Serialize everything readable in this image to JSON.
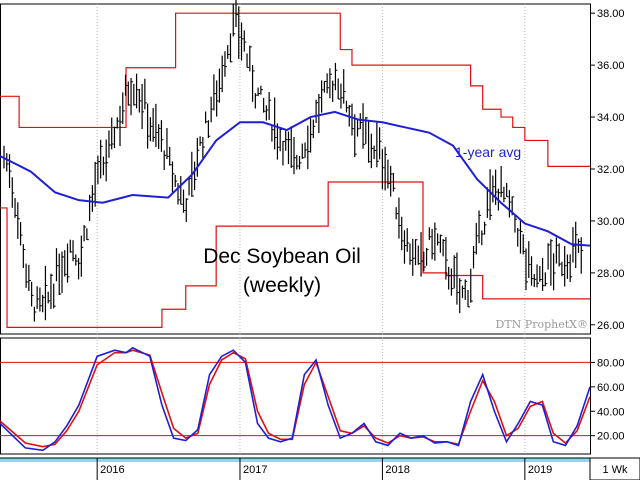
{
  "colors": {
    "background": "#ffffff",
    "frame": "#000000",
    "price_bars": "#000000",
    "moving_average": "#1f1fd6",
    "channel": "#e01010",
    "stoch_k": "#1f1fd6",
    "stoch_d": "#e01010",
    "stoch_levels": "#e01010",
    "gridline": "#b9b9b9",
    "axis_band": "#8fd6f0",
    "axis_band_alt": "#b8e8f8"
  },
  "chart_data": [
    {
      "type": "ohlc_bar",
      "title": "Dec Soybean Oil",
      "subtitle": "(weekly)",
      "watermark": "DTN ProphetX®",
      "annotation": "1-year avg",
      "interval_label": "1 Wk",
      "y_axis": {
        "ticks": [
          "38.00",
          "36.00",
          "34.00",
          "32.00",
          "30.00",
          "28.00",
          "26.00"
        ],
        "ylim": [
          25.8,
          38.2
        ]
      },
      "x_axis": {
        "ticks": [
          "2016",
          "2017",
          "2018",
          "2019"
        ],
        "tick_dates": [
          "2016-01-01",
          "2017-01-01",
          "2018-01-01",
          "2019-01-01"
        ],
        "xlim": [
          "2015-04-27",
          "2019-06-17"
        ]
      },
      "series": [
        {
          "name": "Dec Soybean Oil",
          "kind": "weekly high-low close",
          "approx_closes": [
            32.5,
            31.8,
            30.2,
            28.6,
            27.0,
            26.6,
            26.7,
            27.3,
            28.0,
            28.6,
            29.2,
            28.4,
            29.6,
            31.0,
            31.8,
            32.3,
            33.2,
            34.0,
            35.0,
            35.3,
            34.9,
            34.2,
            33.5,
            33.2,
            32.5,
            31.6,
            31.0,
            30.8,
            32.0,
            33.0,
            33.8,
            34.8,
            35.6,
            36.8,
            37.7,
            37.2,
            36.0,
            35.1,
            34.5,
            34.0,
            33.6,
            33.2,
            32.6,
            32.3,
            32.8,
            33.4,
            34.1,
            34.7,
            35.2,
            35.5,
            34.9,
            34.2,
            33.7,
            33.3,
            33.0,
            32.7,
            32.3,
            31.6,
            30.2,
            29.3,
            28.8,
            28.3,
            28.6,
            29.4,
            29.1,
            28.4,
            27.8,
            27.3,
            27.1,
            28.2,
            29.3,
            30.4,
            31.0,
            31.4,
            30.8,
            30.1,
            29.4,
            28.3,
            27.8,
            27.7,
            28.2,
            28.5,
            28.3,
            28.6,
            28.8,
            28.7
          ]
        },
        {
          "name": "1-year avg",
          "kind": "moving average",
          "x": [
            "2015-04-27",
            "2015-07-15",
            "2015-09-15",
            "2015-11-15",
            "2016-01-15",
            "2016-04-01",
            "2016-07-01",
            "2016-09-01",
            "2016-11-01",
            "2017-01-01",
            "2017-03-01",
            "2017-05-01",
            "2017-07-01",
            "2017-09-01",
            "2017-11-01",
            "2018-01-01",
            "2018-03-01",
            "2018-05-01",
            "2018-07-01",
            "2018-09-01",
            "2018-11-01",
            "2019-01-01",
            "2019-03-01",
            "2019-05-01",
            "2019-06-17"
          ],
          "values": [
            32.5,
            31.9,
            31.1,
            30.8,
            30.7,
            31.0,
            30.9,
            31.8,
            33.1,
            33.8,
            33.8,
            33.5,
            34.0,
            34.2,
            33.9,
            33.8,
            33.6,
            33.4,
            32.9,
            31.6,
            30.7,
            29.9,
            29.6,
            29.1,
            29.05
          ]
        },
        {
          "name": "upper channel",
          "kind": "52-week high (step)",
          "x": [
            "2015-04-27",
            "2015-06-15",
            "2016-03-15",
            "2016-07-20",
            "2017-09-15",
            "2017-10-15",
            "2018-04-15",
            "2018-08-15",
            "2018-09-15",
            "2018-11-01",
            "2018-12-01",
            "2019-01-01",
            "2019-03-01",
            "2019-06-17"
          ],
          "values": [
            34.8,
            33.6,
            35.9,
            38.0,
            36.6,
            36.0,
            36.0,
            35.2,
            34.3,
            34.0,
            33.6,
            33.1,
            32.1,
            32.1
          ]
        },
        {
          "name": "lower channel",
          "kind": "52-week low (step)",
          "x": [
            "2015-04-27",
            "2015-05-15",
            "2016-05-15",
            "2016-06-15",
            "2016-08-15",
            "2016-11-01",
            "2017-08-15",
            "2018-01-01",
            "2018-04-15",
            "2018-06-15",
            "2018-09-15",
            "2019-06-17"
          ],
          "values": [
            30.5,
            25.9,
            25.9,
            26.6,
            27.5,
            29.8,
            31.5,
            31.5,
            28.0,
            27.9,
            27.0,
            27.0
          ]
        }
      ]
    },
    {
      "type": "line",
      "subtype": "stochastic oscillator",
      "y_axis": {
        "ticks": [
          "80.00",
          "60.00",
          "40.00",
          "20.00"
        ],
        "ylim": [
          5,
          100
        ]
      },
      "reference_lines": [
        80,
        20
      ],
      "series": [
        {
          "name": "%K",
          "x": [
            "2015-04-27",
            "2015-07-01",
            "2015-08-15",
            "2015-09-15",
            "2015-10-15",
            "2015-11-15",
            "2016-01-01",
            "2016-02-15",
            "2016-03-15",
            "2016-04-01",
            "2016-05-15",
            "2016-06-15",
            "2016-07-15",
            "2016-08-15",
            "2016-09-15",
            "2016-10-15",
            "2016-11-15",
            "2016-12-15",
            "2017-01-15",
            "2017-02-15",
            "2017-03-15",
            "2017-04-15",
            "2017-05-15",
            "2017-06-15",
            "2017-07-15",
            "2017-08-15",
            "2017-09-15",
            "2017-10-15",
            "2017-11-15",
            "2017-12-15",
            "2018-01-15",
            "2018-02-15",
            "2018-03-15",
            "2018-04-15",
            "2018-05-15",
            "2018-06-15",
            "2018-07-15",
            "2018-08-15",
            "2018-09-15",
            "2018-10-15",
            "2018-11-15",
            "2018-12-15",
            "2019-01-15",
            "2019-02-15",
            "2019-03-15",
            "2019-04-15",
            "2019-05-15",
            "2019-06-17"
          ],
          "values": [
            30,
            10,
            8,
            15,
            28,
            45,
            85,
            90,
            88,
            92,
            85,
            45,
            18,
            16,
            25,
            70,
            85,
            90,
            80,
            30,
            18,
            15,
            18,
            70,
            82,
            45,
            18,
            22,
            30,
            15,
            12,
            22,
            18,
            20,
            14,
            15,
            12,
            48,
            70,
            40,
            15,
            30,
            48,
            45,
            15,
            12,
            28,
            60
          ]
        },
        {
          "name": "%D",
          "x": [
            "2015-04-27",
            "2015-07-01",
            "2015-08-15",
            "2015-09-15",
            "2015-10-15",
            "2015-11-15",
            "2016-01-01",
            "2016-02-15",
            "2016-03-15",
            "2016-04-01",
            "2016-05-15",
            "2016-06-15",
            "2016-07-15",
            "2016-08-15",
            "2016-09-15",
            "2016-10-15",
            "2016-11-15",
            "2016-12-15",
            "2017-01-15",
            "2017-02-15",
            "2017-03-15",
            "2017-04-15",
            "2017-05-15",
            "2017-06-15",
            "2017-07-15",
            "2017-08-15",
            "2017-09-15",
            "2017-10-15",
            "2017-11-15",
            "2017-12-15",
            "2018-01-15",
            "2018-02-15",
            "2018-03-15",
            "2018-04-15",
            "2018-05-15",
            "2018-06-15",
            "2018-07-15",
            "2018-08-15",
            "2018-09-15",
            "2018-10-15",
            "2018-11-15",
            "2018-12-15",
            "2019-01-15",
            "2019-02-15",
            "2019-03-15",
            "2019-04-15",
            "2019-05-15",
            "2019-06-17"
          ],
          "values": [
            32,
            14,
            11,
            13,
            24,
            40,
            78,
            88,
            88,
            90,
            86,
            55,
            26,
            18,
            22,
            62,
            82,
            88,
            83,
            40,
            22,
            17,
            17,
            62,
            80,
            52,
            24,
            22,
            28,
            18,
            14,
            20,
            18,
            19,
            15,
            15,
            13,
            40,
            65,
            48,
            20,
            26,
            44,
            48,
            22,
            14,
            24,
            52
          ]
        }
      ]
    }
  ]
}
